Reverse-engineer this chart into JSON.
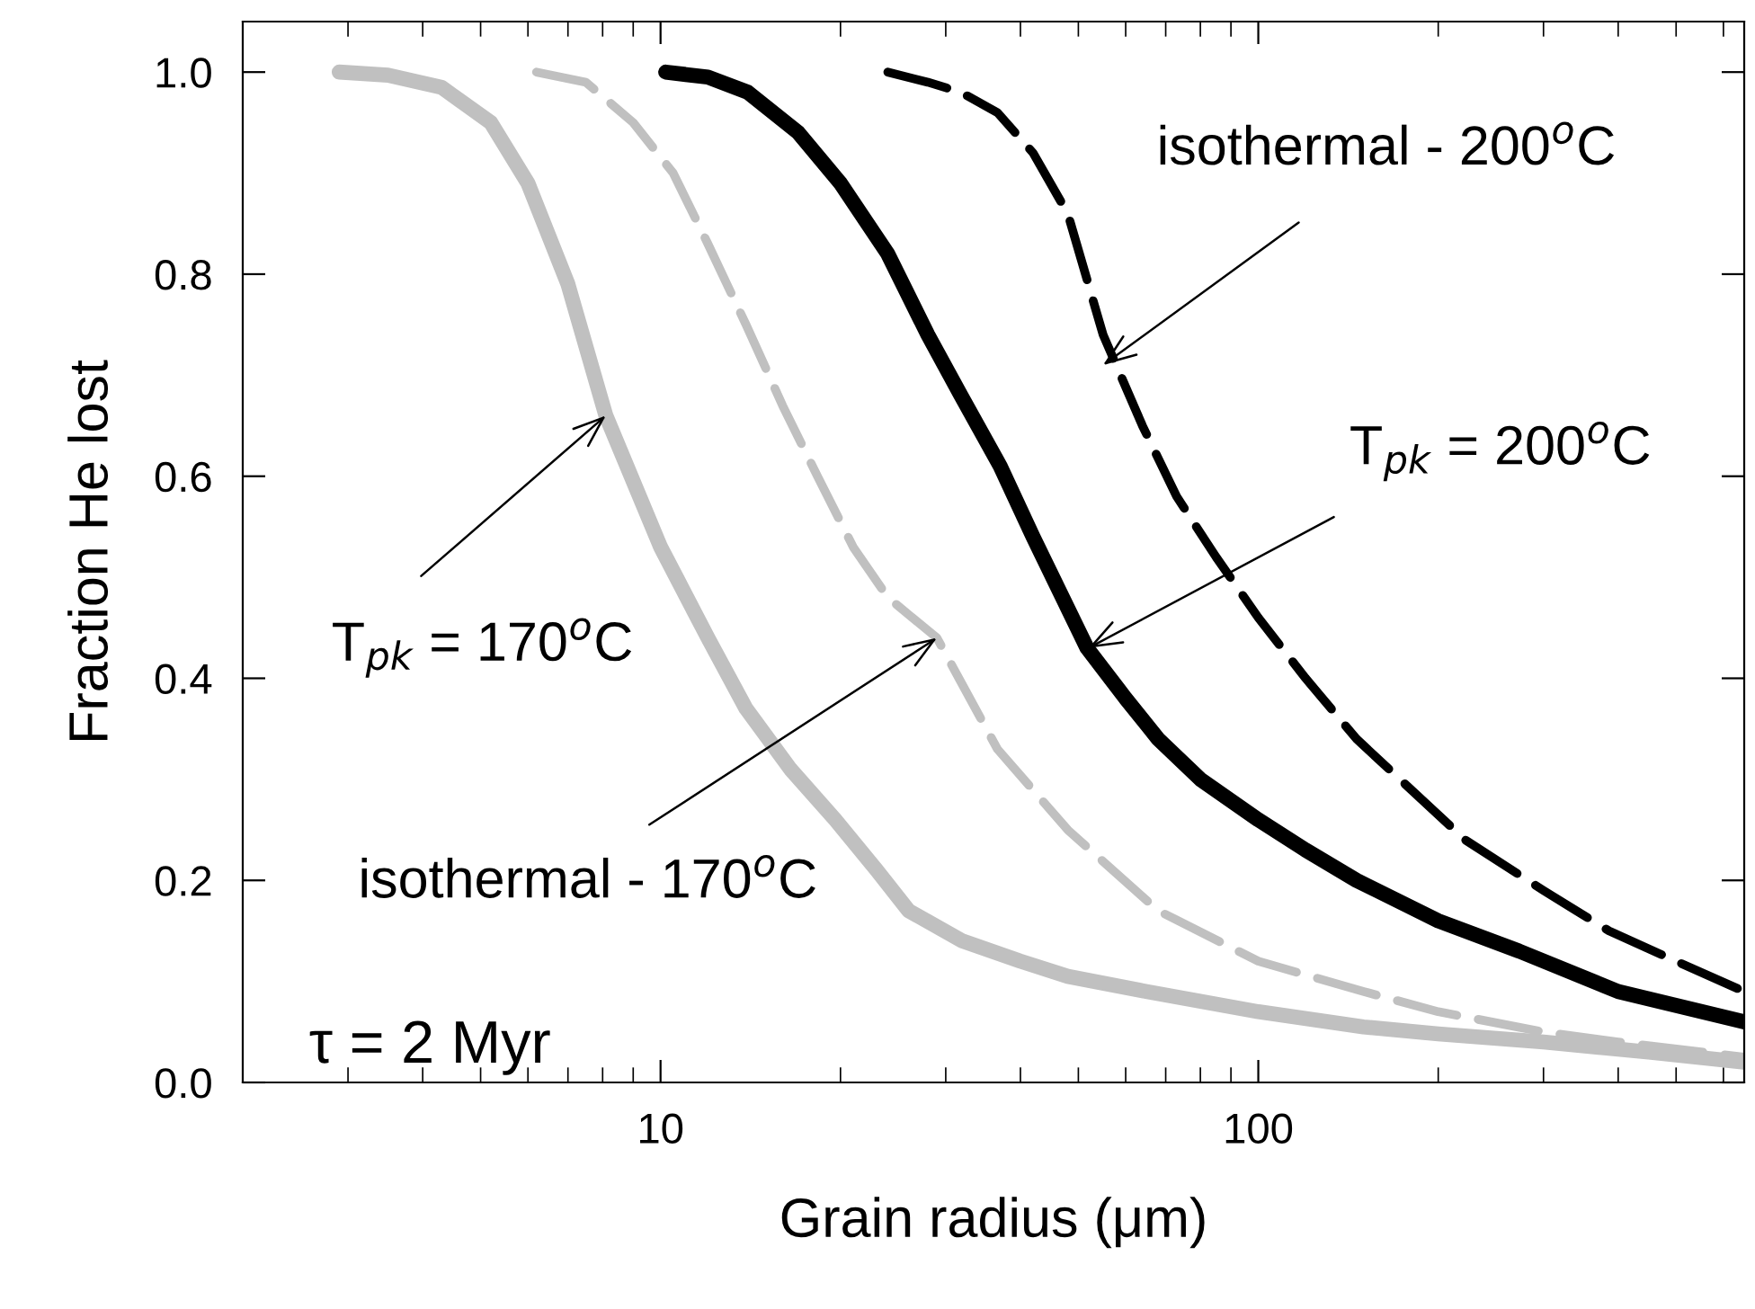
{
  "chart_data": {
    "type": "line",
    "xlabel": "Grain radius (μm)",
    "ylabel": "Fraction He lost",
    "log": "x",
    "xlim": [
      2,
      650
    ],
    "xticks": [
      10,
      100
    ],
    "ylim": [
      0,
      1.05
    ],
    "yticks": [
      {
        "value": 0,
        "label": "0.0"
      },
      0.2,
      0.4,
      0.6,
      0.8,
      {
        "value": 1,
        "label": "1.0"
      }
    ],
    "grid": false,
    "marker": "none",
    "series": [
      {
        "color": "#c0c0c0",
        "line_style": "solid",
        "x": [
          2.9,
          3.5,
          4.3,
          5.2,
          6.0,
          7.0,
          8.1,
          10,
          12,
          13.9,
          16.5,
          19.6,
          23,
          26,
          32,
          40,
          48,
          65,
          100,
          150,
          200,
          300,
          450,
          650
        ],
        "values": [
          1.0,
          0.997,
          0.985,
          0.95,
          0.89,
          0.79,
          0.66,
          0.53,
          0.44,
          0.37,
          0.31,
          0.26,
          0.21,
          0.17,
          0.14,
          0.12,
          0.105,
          0.09,
          0.07,
          0.055,
          0.048,
          0.04,
          0.03,
          0.02
        ]
      },
      {
        "color": "#c0c0c0",
        "line_style": "dashed",
        "x": [
          6.2,
          7.5,
          9,
          10.5,
          12,
          13.9,
          16,
          18.3,
          21,
          24,
          29,
          36.6,
          48,
          68,
          100,
          150,
          200,
          300,
          400,
          650
        ],
        "values": [
          1.0,
          0.99,
          0.95,
          0.9,
          0.83,
          0.75,
          0.67,
          0.6,
          0.53,
          0.48,
          0.44,
          0.33,
          0.25,
          0.17,
          0.12,
          0.09,
          0.07,
          0.05,
          0.04,
          0.025
        ]
      },
      {
        "color": "#000000",
        "line_style": "solid",
        "x": [
          10.2,
          12,
          14,
          17,
          20,
          24,
          28,
          31.8,
          37,
          42,
          51.7,
          60,
          68,
          80,
          100,
          120,
          146,
          200,
          273,
          400,
          650
        ],
        "values": [
          1.0,
          0.995,
          0.98,
          0.94,
          0.89,
          0.82,
          0.74,
          0.68,
          0.61,
          0.54,
          0.43,
          0.38,
          0.34,
          0.3,
          0.26,
          0.23,
          0.2,
          0.16,
          0.13,
          0.09,
          0.06
        ]
      },
      {
        "color": "#000000",
        "line_style": "dashed",
        "x": [
          24,
          28,
          31.8,
          36.6,
          42,
          48,
          55,
          64,
          73,
          85,
          100,
          120,
          146,
          180,
          222,
          300,
          386,
          500,
          650
        ],
        "values": [
          1.0,
          0.99,
          0.98,
          0.96,
          0.92,
          0.86,
          0.74,
          0.65,
          0.58,
          0.52,
          0.46,
          0.4,
          0.34,
          0.29,
          0.24,
          0.19,
          0.15,
          0.12,
          0.09
        ]
      }
    ],
    "annotations": [
      {
        "text": "isothermal - 200$^{o}$C",
        "x": 55,
        "y": 0.71
      },
      {
        "text": "T$_{pk}$ = 200$^{o}$C",
        "x": 52,
        "y": 0.43
      },
      {
        "text": "T$_{pk}$ = 170$^{o}$C",
        "x": 8.1,
        "y": 0.66
      },
      {
        "text": "isothermal - 170$^{o}$C",
        "x": 29,
        "y": 0.44
      },
      "τ = 2 Myr"
    ]
  }
}
